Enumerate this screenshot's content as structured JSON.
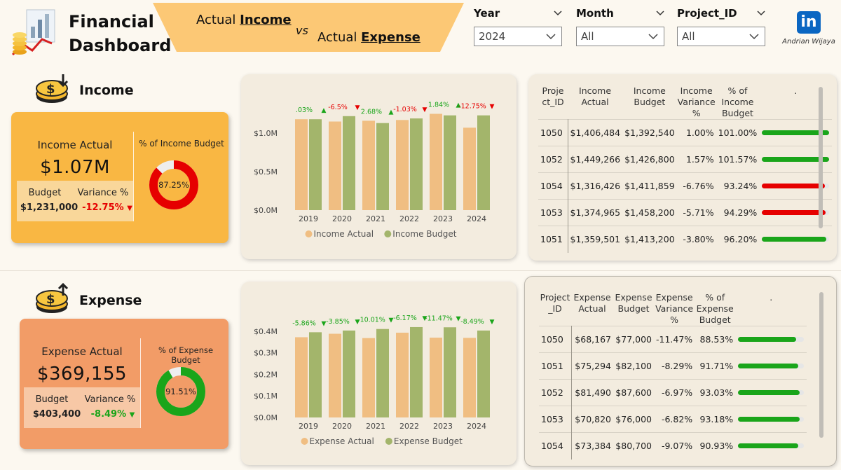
{
  "header": {
    "title_line1": "Financial",
    "title_line2": "Dashboard",
    "banner_left_prefix": "Actual ",
    "banner_left_bold": "Income",
    "banner_vs": "vs",
    "banner_right_prefix": "Actual ",
    "banner_right_bold": "Expense",
    "author": "Andrian Wijaya",
    "linkedin": "in"
  },
  "slicers": [
    {
      "label": "Year",
      "value": "2024"
    },
    {
      "label": "Month",
      "value": "All"
    },
    {
      "label": "Project_ID",
      "value": "All"
    }
  ],
  "income": {
    "section_title": "Income",
    "kpi_label": "Income Actual",
    "kpi_value": "$1.07M",
    "budget_label": "Budget",
    "budget_value": "$1,231,000",
    "variance_label": "Variance %",
    "variance_value": "-12.75%",
    "donut_title": "% of Income Budget",
    "donut_value": "87.25%",
    "donut_fraction": 0.8725
  },
  "expense": {
    "section_title": "Expense",
    "kpi_label": "Expense Actual",
    "kpi_value": "$369,155",
    "budget_label": "Budget",
    "budget_value": "$403,400",
    "variance_label": "Variance %",
    "variance_value": "-8.49%",
    "donut_title": "% of Expense Budget",
    "donut_value": "91.51%",
    "donut_fraction": 0.9151
  },
  "colors": {
    "actual": "#f0be82",
    "budget": "#a3b56b",
    "green": "#1aa51a",
    "red": "#e60000",
    "income_card": "#f9b743",
    "income_sub": "#f9d79a",
    "expense_card": "#f29c67",
    "expense_sub": "#f7c8a6",
    "banner": "#fcc875"
  },
  "chart_data": [
    {
      "type": "bar",
      "categories": [
        "2019",
        "2020",
        "2021",
        "2022",
        "2023",
        "2024"
      ],
      "series": [
        {
          "name": "Income Actual",
          "values": [
            1.18,
            1.15,
            1.16,
            1.17,
            1.25,
            1.07
          ]
        },
        {
          "name": "Income Budget",
          "values": [
            1.18,
            1.22,
            1.13,
            1.19,
            1.23,
            1.23
          ]
        }
      ],
      "data_labels": [
        ".03%",
        "-6.5%",
        "2.68%",
        "-1.03%",
        "1.84%",
        "-12.75%"
      ],
      "label_up": [
        true,
        false,
        true,
        false,
        true,
        false
      ],
      "yticks": [
        "$0.0M",
        "$0.5M",
        "$1.0M"
      ],
      "ytick_values": [
        0,
        0.5,
        1.0
      ],
      "ylim": [
        0,
        1.4
      ],
      "legend_position": "bottom"
    },
    {
      "type": "bar",
      "categories": [
        "2019",
        "2020",
        "2021",
        "2022",
        "2023",
        "2024"
      ],
      "series": [
        {
          "name": "Expense Actual",
          "values": [
            0.372,
            0.388,
            0.368,
            0.393,
            0.37,
            0.369
          ]
        },
        {
          "name": "Expense Budget",
          "values": [
            0.395,
            0.403,
            0.41,
            0.419,
            0.418,
            0.403
          ]
        }
      ],
      "data_labels": [
        "-5.86%",
        "-3.85%",
        "-10.01%",
        "-6.17%",
        "-11.47%",
        "-8.49%"
      ],
      "label_up": [
        false,
        false,
        false,
        false,
        false,
        false
      ],
      "yticks": [
        "$0.0M",
        "$0.1M",
        "$0.2M",
        "$0.3M",
        "$0.4M"
      ],
      "ytick_values": [
        0,
        0.1,
        0.2,
        0.3,
        0.4
      ],
      "ylim": [
        0,
        0.5
      ],
      "legend_position": "bottom"
    }
  ],
  "income_table": {
    "headers": [
      "Proje ct_ID",
      "Income Actual",
      "Income Budget",
      "Income Variance %",
      "% of Income Budget",
      "."
    ],
    "rows": [
      {
        "id": "1050",
        "actual": "$1,406,484",
        "budget": "$1,392,540",
        "variance": "1.00%",
        "pct": "101.00%",
        "fill": 1.0,
        "color": "green"
      },
      {
        "id": "1052",
        "actual": "$1,449,266",
        "budget": "$1,426,800",
        "variance": "1.57%",
        "pct": "101.57%",
        "fill": 1.0,
        "color": "green"
      },
      {
        "id": "1054",
        "actual": "$1,316,426",
        "budget": "$1,411,859",
        "variance": "-6.76%",
        "pct": "93.24%",
        "fill": 0.93,
        "color": "red"
      },
      {
        "id": "1053",
        "actual": "$1,374,965",
        "budget": "$1,458,200",
        "variance": "-5.71%",
        "pct": "94.29%",
        "fill": 0.94,
        "color": "red"
      },
      {
        "id": "1051",
        "actual": "$1,359,501",
        "budget": "$1,413,200",
        "variance": "-3.80%",
        "pct": "96.20%",
        "fill": 0.96,
        "color": "green"
      }
    ]
  },
  "expense_table": {
    "headers": [
      "Project _ID",
      "Expense Actual",
      "Expense Budget",
      "Expense Variance %",
      "% of Expense Budget",
      "."
    ],
    "rows": [
      {
        "id": "1050",
        "actual": "$68,167",
        "budget": "$77,000",
        "variance": "-11.47%",
        "pct": "88.53%",
        "fill": 0.885,
        "color": "green"
      },
      {
        "id": "1051",
        "actual": "$75,294",
        "budget": "$82,100",
        "variance": "-8.29%",
        "pct": "91.71%",
        "fill": 0.917,
        "color": "green"
      },
      {
        "id": "1052",
        "actual": "$81,490",
        "budget": "$87,600",
        "variance": "-6.97%",
        "pct": "93.03%",
        "fill": 0.93,
        "color": "green"
      },
      {
        "id": "1053",
        "actual": "$70,820",
        "budget": "$76,000",
        "variance": "-6.82%",
        "pct": "93.18%",
        "fill": 0.932,
        "color": "green"
      },
      {
        "id": "1054",
        "actual": "$73,384",
        "budget": "$80,700",
        "variance": "-9.07%",
        "pct": "90.93%",
        "fill": 0.909,
        "color": "green"
      }
    ]
  }
}
